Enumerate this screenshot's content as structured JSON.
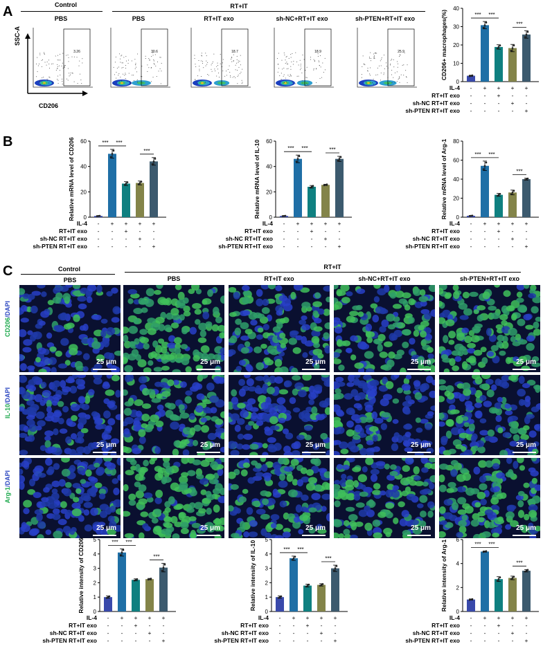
{
  "panels": {
    "a": "A",
    "b": "B",
    "c": "C"
  },
  "top": {
    "control": "Control",
    "rtit": "RT+IT",
    "flow_titles": [
      "PBS",
      "PBS",
      "RT+IT exo",
      "sh-NC+RT+IT exo",
      "sh-PTEN+RT+IT exo"
    ],
    "gate_values": [
      "3.26",
      "30.6",
      "18.7",
      "18.9",
      "25.9"
    ],
    "ssc": "SSC-A",
    "cd206": "CD206"
  },
  "micro": {
    "control": "Control",
    "rtit": "RT+IT",
    "cols": [
      "PBS",
      "PBS",
      "RT+IT exo",
      "sh-NC+RT+IT exo",
      "sh-PTEN+RT+IT exo"
    ],
    "rows": [
      {
        "green": "CD206",
        "blue": "/DAPI"
      },
      {
        "green": "IL-10",
        "blue": "/DAPI"
      },
      {
        "green": "Arg-1",
        "blue": "/DAPI"
      }
    ],
    "scale": "25 μm"
  },
  "colors": {
    "bar1": "#3949ab",
    "bar2": "#1f6fa6",
    "bar3": "#0f8080",
    "bar4": "#838449",
    "bar5": "#3c5a6e"
  },
  "row_labels": [
    "IL-4",
    "RT+IT exo",
    "sh-NC RT+IT exo",
    "sh-PTEN RT+IT exo"
  ],
  "signs": [
    [
      "-",
      "+",
      "+",
      "+",
      "+"
    ],
    [
      "-",
      "-",
      "+",
      "-",
      "-"
    ],
    [
      "-",
      "-",
      "-",
      "+",
      "-"
    ],
    [
      "-",
      "-",
      "-",
      "-",
      "+"
    ]
  ],
  "sig": "***",
  "chart_data": [
    {
      "type": "bar",
      "id": "a",
      "ylabel": "CD206+ macrophages(%)",
      "ylim": [
        0,
        40
      ],
      "yticks": [
        0,
        10,
        20,
        30,
        40
      ],
      "values": [
        3.2,
        30.8,
        18.9,
        18.3,
        25.7
      ],
      "errors": [
        0.3,
        2.0,
        1.2,
        2.0,
        2.0
      ]
    },
    {
      "type": "bar",
      "id": "b1",
      "ylabel": "Relative mRNA level of CD206",
      "ylim": [
        0,
        60
      ],
      "yticks": [
        0,
        20,
        40,
        60
      ],
      "values": [
        1,
        50,
        26.5,
        27,
        44
      ],
      "errors": [
        0.2,
        3.5,
        1.5,
        1.5,
        3
      ]
    },
    {
      "type": "bar",
      "id": "b2",
      "ylabel": "Relative mRNA level of IL-10",
      "ylim": [
        0,
        60
      ],
      "yticks": [
        0,
        20,
        40,
        60
      ],
      "values": [
        1,
        46,
        24,
        25.5,
        46
      ],
      "errors": [
        0.2,
        3,
        1,
        0.5,
        2
      ]
    },
    {
      "type": "bar",
      "id": "b3",
      "ylabel": "Relative mRNA level of Arg-1",
      "ylim": [
        0,
        80
      ],
      "yticks": [
        0,
        20,
        40,
        60,
        80
      ],
      "values": [
        1.5,
        54,
        23.5,
        26,
        40
      ],
      "errors": [
        0.3,
        5,
        1.5,
        2.5,
        1
      ]
    },
    {
      "type": "bar",
      "id": "c1",
      "ylabel": "Relative intensity of CD206",
      "ylim": [
        0,
        5
      ],
      "yticks": [
        0,
        1,
        2,
        3,
        4,
        5
      ],
      "values": [
        1,
        4.1,
        2.2,
        2.25,
        3.05
      ],
      "errors": [
        0.08,
        0.25,
        0.07,
        0.05,
        0.3
      ]
    },
    {
      "type": "bar",
      "id": "c2",
      "ylabel": "Relative intensity of IL-10",
      "ylim": [
        0,
        5
      ],
      "yticks": [
        0,
        1,
        2,
        3,
        4,
        5
      ],
      "values": [
        1,
        3.7,
        1.8,
        1.85,
        3.0
      ],
      "errors": [
        0.08,
        0.15,
        0.1,
        0.08,
        0.22
      ]
    },
    {
      "type": "bar",
      "id": "c3",
      "ylabel": "Relative intensity of Arg-1",
      "ylim": [
        0,
        6
      ],
      "yticks": [
        0,
        2,
        4,
        6
      ],
      "values": [
        1,
        5,
        2.7,
        2.8,
        3.4
      ],
      "errors": [
        0.05,
        0.05,
        0.2,
        0.15,
        0.1
      ]
    }
  ]
}
